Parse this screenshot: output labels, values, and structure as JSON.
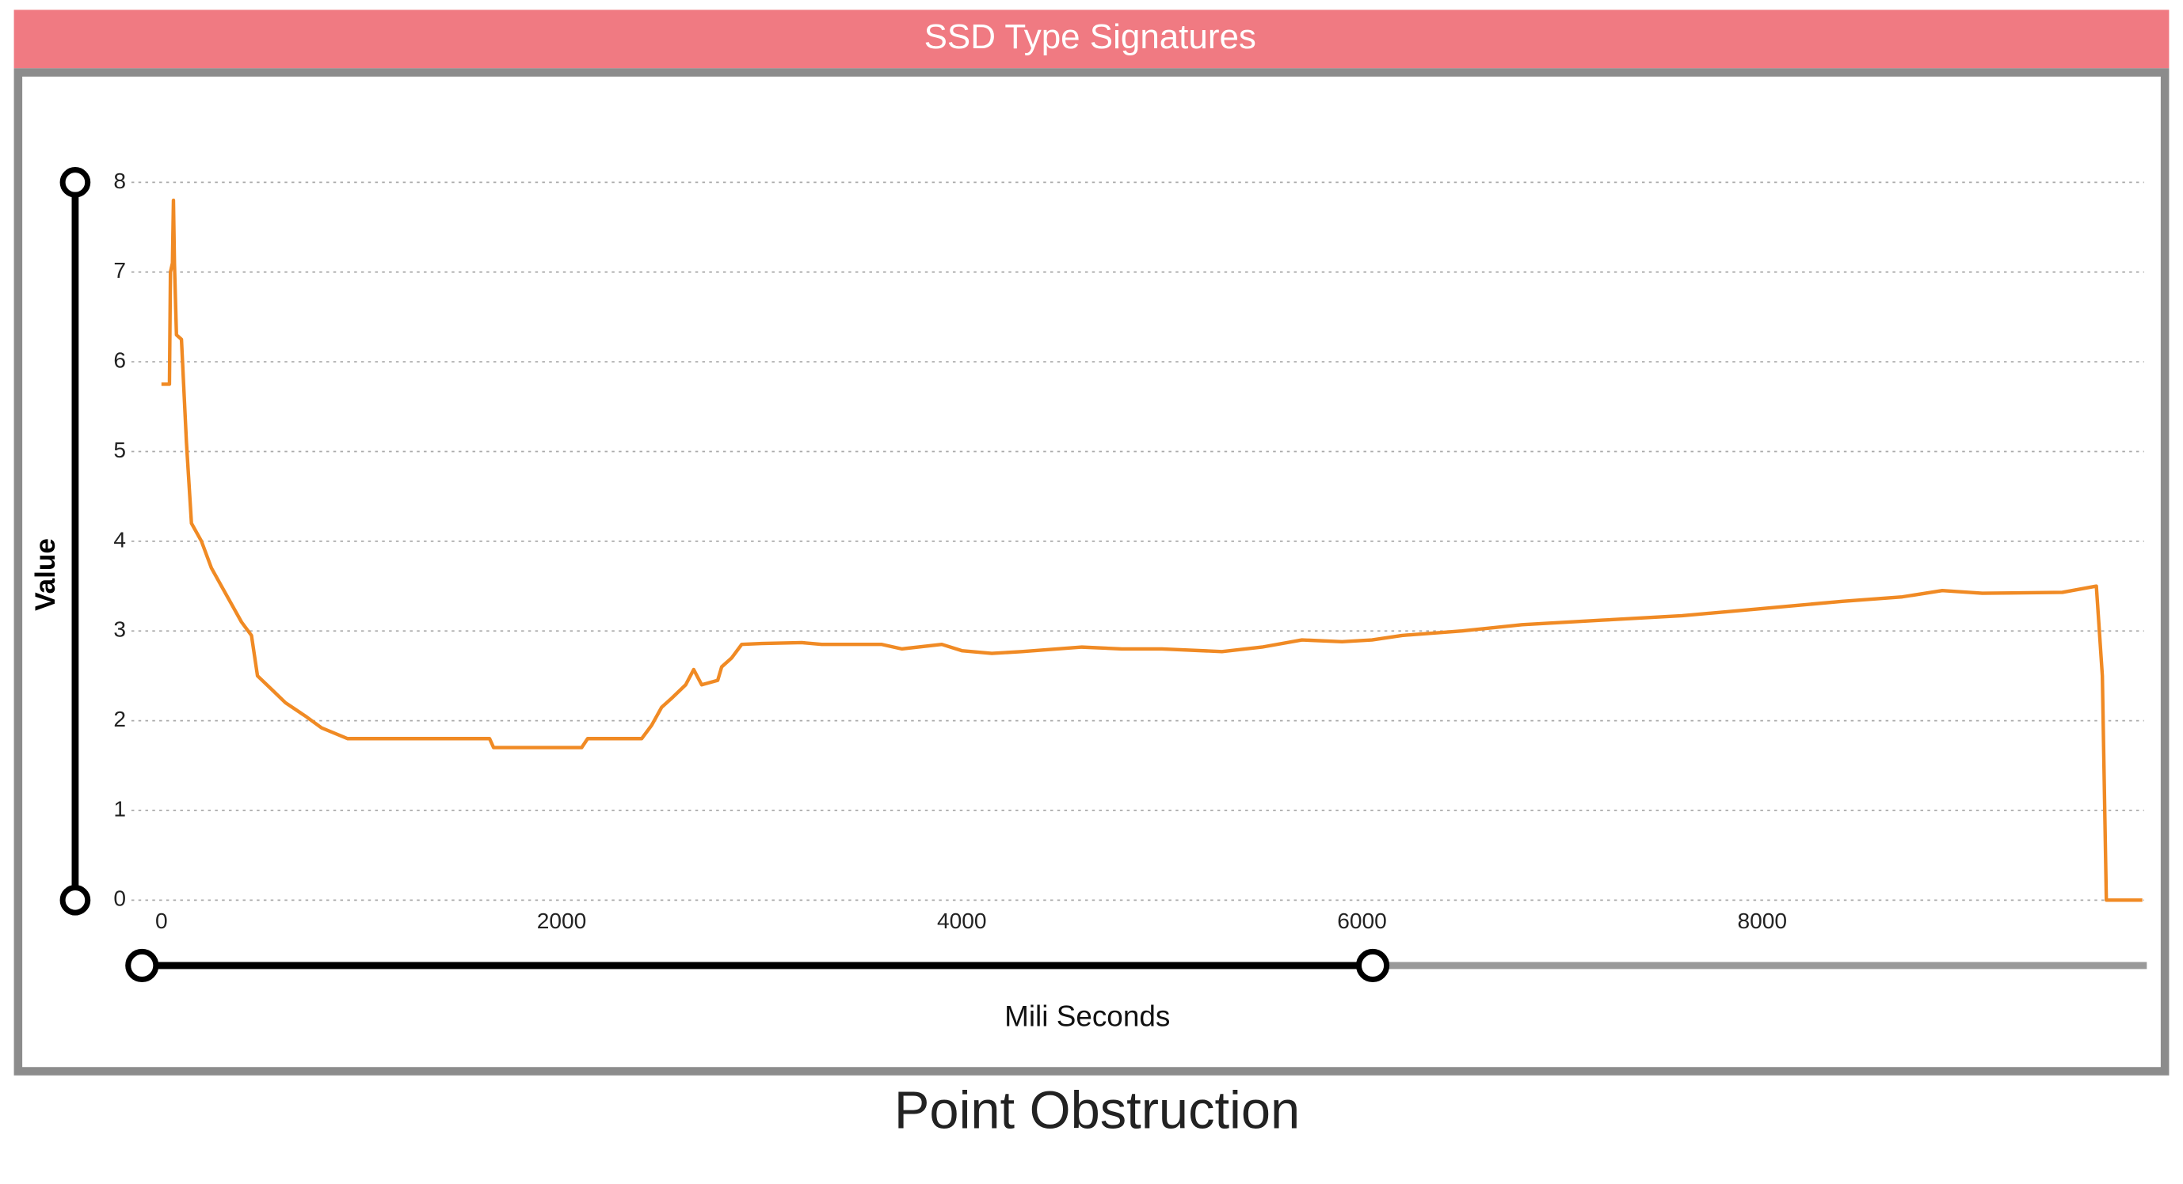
{
  "chart_data": {
    "type": "line",
    "title": "SSD Type Signatures",
    "xlabel": "Mili Seconds",
    "ylabel": "Value",
    "caption": "Point Obstruction",
    "x": [
      0,
      40,
      45,
      55,
      60,
      65,
      75,
      100,
      125,
      150,
      200,
      250,
      300,
      350,
      400,
      450,
      480,
      550,
      620,
      720,
      800,
      930,
      1640,
      1660,
      2100,
      2130,
      2400,
      2450,
      2500,
      2550,
      2620,
      2660,
      2700,
      2780,
      2800,
      2850,
      2900,
      3000,
      3200,
      3300,
      3600,
      3700,
      3900,
      4000,
      4150,
      4300,
      4600,
      4800,
      5000,
      5300,
      5500,
      5700,
      5900,
      6050,
      6200,
      6500,
      6800,
      7200,
      7600,
      8000,
      8400,
      8700,
      8900,
      9100,
      9500,
      9670,
      9700,
      9720,
      9900
    ],
    "values": [
      5.75,
      5.75,
      7.0,
      7.1,
      7.8,
      7.1,
      6.3,
      6.25,
      5.1,
      4.2,
      4.0,
      3.7,
      3.5,
      3.3,
      3.1,
      2.95,
      2.5,
      2.35,
      2.2,
      2.05,
      1.92,
      1.8,
      1.8,
      1.7,
      1.7,
      1.8,
      1.8,
      1.95,
      2.15,
      2.25,
      2.4,
      2.57,
      2.4,
      2.45,
      2.6,
      2.7,
      2.85,
      2.86,
      2.87,
      2.85,
      2.85,
      2.8,
      2.85,
      2.78,
      2.75,
      2.77,
      2.82,
      2.8,
      2.8,
      2.77,
      2.82,
      2.9,
      2.88,
      2.9,
      2.95,
      3.0,
      3.07,
      3.12,
      3.17,
      3.25,
      3.33,
      3.38,
      3.45,
      3.42,
      3.43,
      3.5,
      2.5,
      0,
      0
    ],
    "color": "#f08a24",
    "xlim": [
      -150,
      9950
    ],
    "ylim": [
      0,
      8
    ],
    "xticks": [
      0,
      2000,
      4000,
      6000,
      8000
    ],
    "yticks": [
      0,
      1,
      2,
      3,
      4,
      5,
      6,
      7,
      8
    ],
    "grid": true
  }
}
